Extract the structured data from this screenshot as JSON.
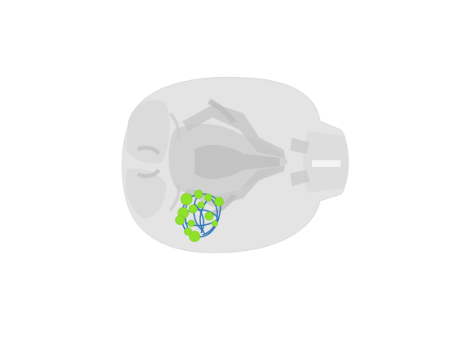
{
  "scene": {
    "background_color": "#ffffff",
    "brain_outline_color": "#cfcfcf",
    "brain_fill_light": "#e3e3e3",
    "brain_fill_mid": "#d5d5d5",
    "brain_fill_dark": "#c4c4c4",
    "connection_color": "#1f6fb5",
    "node_color": "#8fe22a",
    "node_outline_color": "#76c91c",
    "view": "dorsal"
  }
}
